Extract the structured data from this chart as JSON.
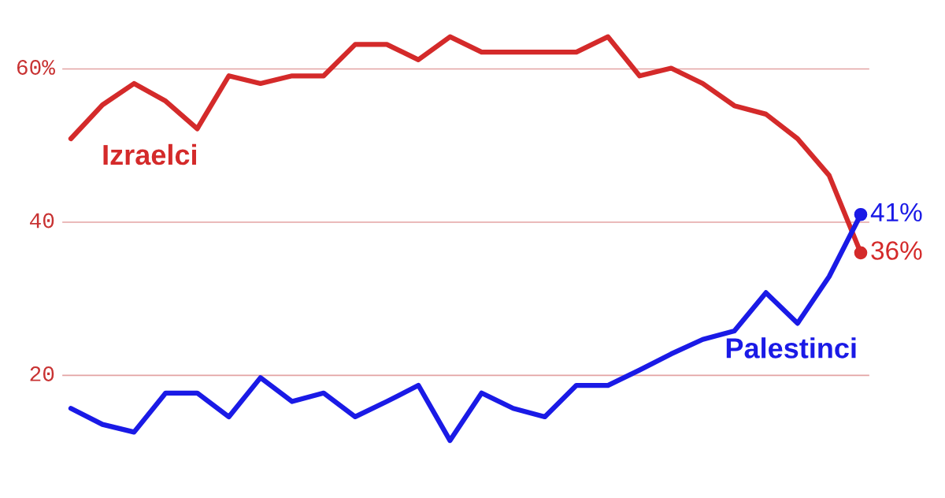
{
  "chart_data": {
    "type": "line",
    "categories": [
      null,
      null,
      null,
      null,
      null,
      null,
      null,
      null,
      null,
      null,
      null,
      null,
      null,
      null,
      null,
      null,
      null,
      null,
      null,
      null,
      null,
      null,
      null,
      null,
      null,
      null
    ],
    "series": [
      {
        "name": "Izraelci",
        "color": "#d42a2a",
        "values": [
          50.9,
          55.3,
          58.1,
          55.8,
          52.2,
          59.1,
          58.1,
          59.1,
          59.1,
          63.2,
          63.2,
          61.2,
          64.2,
          62.2,
          62.2,
          62.2,
          62.2,
          64.2,
          59.1,
          60.1,
          58.1,
          55.2,
          54.1,
          50.9,
          46.1,
          36
        ],
        "value_labels": [
          null,
          null,
          null,
          null,
          null,
          null,
          null,
          null,
          null,
          null,
          null,
          null,
          null,
          null,
          null,
          null,
          null,
          null,
          null,
          null,
          null,
          null,
          null,
          null,
          null,
          "36%"
        ]
      },
      {
        "name": "Palestinci",
        "color": "#1a1ae6",
        "values": [
          15.7,
          13.6,
          12.6,
          17.7,
          17.7,
          14.6,
          19.7,
          16.6,
          17.7,
          14.6,
          16.6,
          18.7,
          11.5,
          17.7,
          15.7,
          14.6,
          18.7,
          18.7,
          20.7,
          22.8,
          24.7,
          25.8,
          30.8,
          26.8,
          32.9,
          41
        ],
        "value_labels": [
          null,
          null,
          null,
          null,
          null,
          null,
          null,
          null,
          null,
          null,
          null,
          null,
          null,
          null,
          null,
          null,
          null,
          null,
          null,
          null,
          null,
          null,
          null,
          null,
          null,
          "41%"
        ]
      }
    ],
    "ylim": [
      4,
      69
    ],
    "yticks": [
      {
        "value": 20,
        "label": "20"
      },
      {
        "value": 40,
        "label": "40"
      },
      {
        "value": 60,
        "label": "60%"
      }
    ],
    "grid": "y",
    "legend": false,
    "line_style": "solid"
  }
}
